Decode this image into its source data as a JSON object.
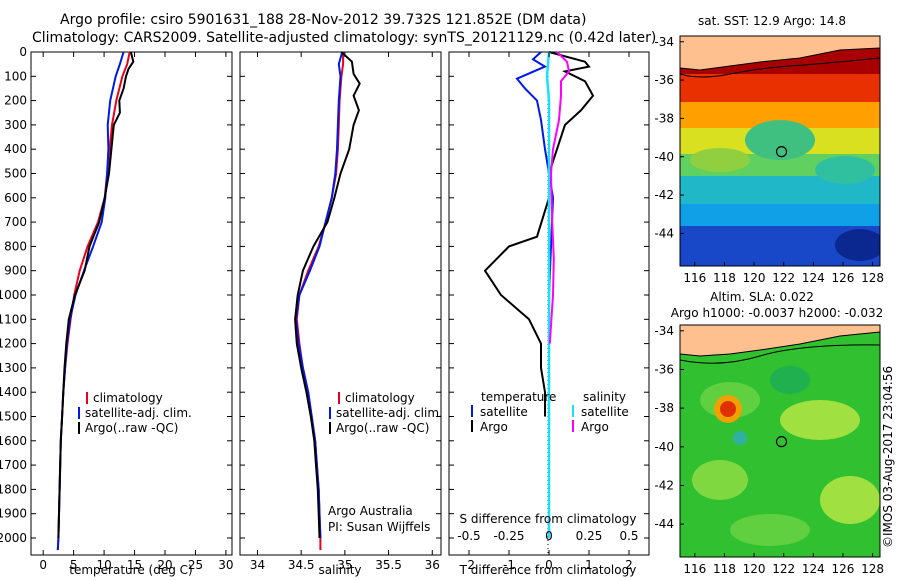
{
  "title": {
    "line1": "Argo profile: csiro 5901631_188 28-Nov-2012 39.732S 121.852E (DM data)",
    "line2": "Climatology: CARS2009. Satellite-adjusted climatology: synTS_20121129.nc (0.42d later)"
  },
  "colors": {
    "climatology": "#e8001c",
    "satellite": "#0018e8",
    "argo": "#000000",
    "sat_cyan": "#19e0ff",
    "argo_magenta": "#ff00ff"
  },
  "depth_ticks": [
    0,
    100,
    200,
    300,
    400,
    500,
    600,
    700,
    800,
    900,
    1000,
    1100,
    1200,
    1300,
    1400,
    1500,
    1600,
    1700,
    1800,
    1900,
    2000
  ],
  "chart_data": [
    {
      "type": "line",
      "xlabel": "temperature (deg C)",
      "ylabel": "",
      "xlim": [
        -2,
        31
      ],
      "ylim": [
        2070,
        0
      ],
      "xticks": [
        "0",
        "5",
        "10",
        "15",
        "20",
        "25",
        "30"
      ],
      "xtick_values": [
        0,
        5,
        10,
        15,
        20,
        25,
        30
      ],
      "legend": [
        "climatology",
        "satellite-adj. clim.",
        "Argo(..raw -QC)"
      ],
      "series": [
        {
          "name": "climatology",
          "color": "#e8001c",
          "points": [
            [
              14.2,
              0
            ],
            [
              13.8,
              50
            ],
            [
              13.0,
              100
            ],
            [
              12.0,
              200
            ],
            [
              11.3,
              300
            ],
            [
              10.9,
              400
            ],
            [
              10.5,
              500
            ],
            [
              10.1,
              600
            ],
            [
              9.0,
              700
            ],
            [
              7.3,
              800
            ],
            [
              6.0,
              900
            ],
            [
              5.1,
              1000
            ],
            [
              4.5,
              1100
            ],
            [
              4.0,
              1200
            ],
            [
              3.6,
              1300
            ],
            [
              3.3,
              1400
            ],
            [
              3.1,
              1500
            ],
            [
              2.9,
              1600
            ],
            [
              2.8,
              1700
            ],
            [
              2.7,
              1800
            ],
            [
              2.6,
              1900
            ],
            [
              2.5,
              2000
            ],
            [
              2.4,
              2050
            ]
          ]
        },
        {
          "name": "satellite-adj. clim.",
          "color": "#0018e8",
          "points": [
            [
              13.2,
              0
            ],
            [
              12.6,
              50
            ],
            [
              11.9,
              100
            ],
            [
              11.0,
              200
            ],
            [
              10.6,
              300
            ],
            [
              10.7,
              400
            ],
            [
              10.5,
              500
            ],
            [
              10.2,
              600
            ],
            [
              9.6,
              700
            ],
            [
              8.2,
              800
            ],
            [
              6.7,
              900
            ],
            [
              5.3,
              1000
            ],
            [
              4.4,
              1100
            ],
            [
              3.9,
              1200
            ],
            [
              3.6,
              1300
            ],
            [
              3.3,
              1400
            ],
            [
              3.1,
              1500
            ],
            [
              2.9,
              1600
            ],
            [
              2.8,
              1700
            ],
            [
              2.7,
              1800
            ],
            [
              2.6,
              1900
            ],
            [
              2.5,
              2000
            ],
            [
              2.4,
              2050
            ]
          ]
        },
        {
          "name": "Argo(..raw -QC)",
          "color": "#000000",
          "points": [
            [
              14.4,
              0
            ],
            [
              14.8,
              40
            ],
            [
              14.0,
              70
            ],
            [
              13.6,
              100
            ],
            [
              13.2,
              150
            ],
            [
              12.5,
              200
            ],
            [
              12.6,
              250
            ],
            [
              11.6,
              300
            ],
            [
              11.2,
              400
            ],
            [
              10.8,
              500
            ],
            [
              10.1,
              600
            ],
            [
              9.2,
              700
            ],
            [
              7.6,
              800
            ],
            [
              6.8,
              900
            ],
            [
              5.2,
              1000
            ],
            [
              4.2,
              1100
            ],
            [
              3.8,
              1200
            ],
            [
              3.5,
              1300
            ],
            [
              3.3,
              1400
            ],
            [
              3.1,
              1500
            ],
            [
              2.9,
              1600
            ],
            [
              2.8,
              1700
            ],
            [
              2.7,
              1800
            ],
            [
              2.6,
              1900
            ],
            [
              2.5,
              2000
            ]
          ]
        }
      ]
    },
    {
      "type": "line",
      "xlabel": "salinity",
      "xlim": [
        33.8,
        36.1
      ],
      "ylim": [
        2070,
        0
      ],
      "xticks": [
        "34",
        "34.5",
        "35",
        "35.5",
        "36"
      ],
      "xtick_values": [
        34,
        34.5,
        35,
        35.5,
        36
      ],
      "legend": [
        "climatology",
        "satellite-adj. clim.",
        "Argo(..raw -QC)"
      ],
      "annotation": [
        "Argo Australia",
        "PI: Susan Wijffels"
      ],
      "series": [
        {
          "name": "climatology",
          "color": "#e8001c",
          "points": [
            [
              34.98,
              0
            ],
            [
              34.98,
              50
            ],
            [
              34.96,
              100
            ],
            [
              34.94,
              200
            ],
            [
              34.93,
              300
            ],
            [
              34.92,
              400
            ],
            [
              34.9,
              500
            ],
            [
              34.85,
              600
            ],
            [
              34.78,
              700
            ],
            [
              34.7,
              800
            ],
            [
              34.58,
              900
            ],
            [
              34.48,
              1000
            ],
            [
              34.45,
              1100
            ],
            [
              34.48,
              1200
            ],
            [
              34.52,
              1300
            ],
            [
              34.58,
              1400
            ],
            [
              34.62,
              1500
            ],
            [
              34.66,
              1600
            ],
            [
              34.68,
              1700
            ],
            [
              34.7,
              1800
            ],
            [
              34.71,
              1900
            ],
            [
              34.72,
              2000
            ],
            [
              34.72,
              2050
            ]
          ]
        },
        {
          "name": "satellite-adj. clim.",
          "color": "#0018e8",
          "points": [
            [
              34.97,
              0
            ],
            [
              34.93,
              50
            ],
            [
              34.95,
              100
            ],
            [
              34.93,
              200
            ],
            [
              34.92,
              300
            ],
            [
              34.91,
              400
            ],
            [
              34.89,
              500
            ],
            [
              34.85,
              600
            ],
            [
              34.78,
              700
            ],
            [
              34.71,
              800
            ],
            [
              34.6,
              900
            ],
            [
              34.48,
              1000
            ],
            [
              34.44,
              1100
            ],
            [
              34.47,
              1200
            ],
            [
              34.52,
              1300
            ],
            [
              34.58,
              1400
            ],
            [
              34.62,
              1500
            ],
            [
              34.66,
              1600
            ],
            [
              34.68,
              1700
            ],
            [
              34.7,
              1800
            ],
            [
              34.71,
              1900
            ],
            [
              34.72,
              2000
            ]
          ]
        },
        {
          "name": "Argo(..raw -QC)",
          "color": "#000000",
          "points": [
            [
              34.96,
              0
            ],
            [
              35.08,
              40
            ],
            [
              35.1,
              90
            ],
            [
              35.17,
              130
            ],
            [
              35.1,
              180
            ],
            [
              35.16,
              240
            ],
            [
              35.1,
              300
            ],
            [
              35.05,
              400
            ],
            [
              34.95,
              500
            ],
            [
              34.88,
              600
            ],
            [
              34.8,
              700
            ],
            [
              34.64,
              800
            ],
            [
              34.52,
              900
            ],
            [
              34.46,
              1000
            ],
            [
              34.43,
              1100
            ],
            [
              34.45,
              1200
            ],
            [
              34.5,
              1300
            ],
            [
              34.56,
              1400
            ],
            [
              34.61,
              1500
            ],
            [
              34.65,
              1600
            ],
            [
              34.67,
              1700
            ],
            [
              34.69,
              1800
            ],
            [
              34.7,
              1900
            ],
            [
              34.71,
              2000
            ]
          ]
        }
      ]
    },
    {
      "type": "line",
      "xlabel": "T difference from climatology",
      "xlim": [
        -2.5,
        2.5
      ],
      "ylim": [
        2070,
        0
      ],
      "xticks": [
        "-2",
        "-1",
        "0",
        "1",
        "2"
      ],
      "xtick_values": [
        -2,
        -1,
        0,
        1,
        2
      ],
      "top_axis_label": "S difference from climatology",
      "top_ticks": [
        "-0.5",
        "-0.25",
        "0",
        "0.25",
        "0.5"
      ],
      "top_tick_values": [
        -0.5,
        -0.25,
        0,
        0.25,
        0.5
      ],
      "legend_left_title": "temperature",
      "legend_right_title": "salinity",
      "legend_left": [
        "satellite",
        "Argo"
      ],
      "legend_right": [
        "satellite",
        "Argo"
      ],
      "series": [
        {
          "name": "satellite",
          "color": "#0018e8",
          "points": [
            [
              -0.2,
              0
            ],
            [
              -0.4,
              30
            ],
            [
              -0.1,
              60
            ],
            [
              -0.8,
              110
            ],
            [
              -0.6,
              150
            ],
            [
              -0.3,
              200
            ],
            [
              -0.2,
              280
            ],
            [
              -0.1,
              400
            ],
            [
              0.0,
              500
            ],
            [
              0.1,
              600
            ],
            [
              0.05,
              800
            ],
            [
              0.0,
              1000
            ],
            [
              0.0,
              1400
            ]
          ]
        },
        {
          "name": "Argo",
          "color": "#000000",
          "points": [
            [
              0.0,
              0
            ],
            [
              0.9,
              40
            ],
            [
              1.0,
              60
            ],
            [
              0.4,
              80
            ],
            [
              0.9,
              120
            ],
            [
              1.1,
              180
            ],
            [
              0.8,
              240
            ],
            [
              0.4,
              300
            ],
            [
              0.2,
              400
            ],
            [
              0.0,
              500
            ],
            [
              0.0,
              600
            ],
            [
              -0.3,
              760
            ],
            [
              -1.0,
              800
            ],
            [
              -1.6,
              900
            ],
            [
              -1.2,
              1000
            ],
            [
              -0.5,
              1100
            ],
            [
              -0.2,
              1200
            ],
            [
              -0.2,
              1300
            ],
            [
              -0.1,
              1400
            ],
            [
              -0.1,
              1500
            ]
          ]
        },
        {
          "name": "satellite",
          "color": "#19e0ff",
          "points": [
            [
              0.0,
              0
            ],
            [
              -0.05,
              100
            ],
            [
              0.0,
              200
            ],
            [
              0.0,
              400
            ],
            [
              0.0,
              600
            ],
            [
              0.0,
              800
            ],
            [
              0.0,
              1000
            ],
            [
              0.0,
              1200
            ],
            [
              0.0,
              1400
            ],
            [
              0.0,
              1600
            ],
            [
              0.0,
              1800
            ],
            [
              0.0,
              2000
            ]
          ]
        },
        {
          "name": "Argo",
          "color": "#ff00ff",
          "points": [
            [
              0.2,
              0
            ],
            [
              0.45,
              40
            ],
            [
              0.5,
              80
            ],
            [
              0.3,
              120
            ],
            [
              0.3,
              180
            ],
            [
              0.25,
              280
            ],
            [
              0.1,
              400
            ],
            [
              0.05,
              500
            ],
            [
              0.08,
              700
            ],
            [
              0.12,
              850
            ],
            [
              0.1,
              1000
            ],
            [
              0.06,
              1100
            ],
            [
              0.02,
              1200
            ]
          ]
        }
      ]
    },
    {
      "type": "heatmap",
      "title": "sat. SST: 12.9 Argo: 14.8",
      "xlim": [
        115,
        128.5
      ],
      "ylim": [
        -45.7,
        -33.7
      ],
      "xticks": [
        "116",
        "118",
        "120",
        "122",
        "124",
        "126",
        "128"
      ],
      "xtick_values": [
        116,
        118,
        120,
        122,
        124,
        126,
        128
      ],
      "yticks": [
        "-34",
        "-36",
        "-38",
        "-40",
        "-42",
        "-44"
      ],
      "ytick_values": [
        -34,
        -36,
        -38,
        -40,
        -42,
        -44
      ],
      "marker": [
        121.852,
        -39.732
      ]
    },
    {
      "type": "heatmap",
      "title": "Altim. SLA: 0.022",
      "subtitle": "Argo h1000: -0.0037 h2000: -0.032",
      "xlim": [
        115,
        128.5
      ],
      "ylim": [
        -45.7,
        -33.7
      ],
      "xticks": [
        "116",
        "118",
        "120",
        "122",
        "124",
        "126",
        "128"
      ],
      "xtick_values": [
        116,
        118,
        120,
        122,
        124,
        126,
        128
      ],
      "yticks": [
        "-34",
        "-36",
        "-38",
        "-40",
        "-42",
        "-44"
      ],
      "ytick_values": [
        -34,
        -36,
        -38,
        -40,
        -42,
        -44
      ],
      "marker": [
        121.852,
        -39.732
      ]
    }
  ],
  "credit": "©IMOS 03-Aug-2017 23:04:56"
}
